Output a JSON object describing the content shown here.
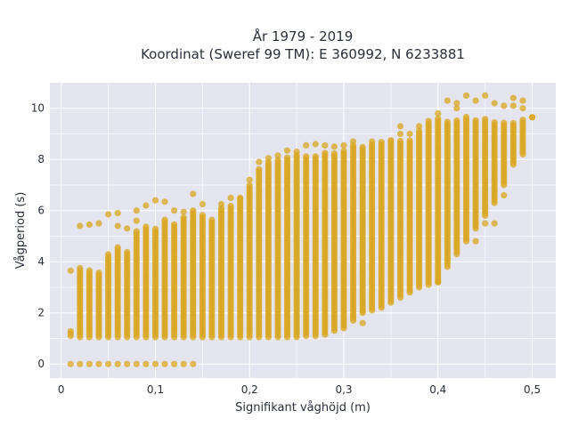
{
  "chart_data": {
    "type": "scatter",
    "title_lines": [
      "År 1979 - 2019",
      "Koordinat (Sweref 99 TM): E 360992, N 6233881"
    ],
    "xlabel": "Signifikant våghöjd (m)",
    "ylabel": "Vågperiod (s)",
    "xlim": [
      -0.012,
      0.525
    ],
    "ylim": [
      -0.55,
      11.0
    ],
    "x_ticks": [
      0,
      0.1,
      0.2,
      0.3,
      0.4,
      0.5
    ],
    "x_tick_labels": [
      "0",
      "0,1",
      "0,2",
      "0,3",
      "0,4",
      "0,5"
    ],
    "y_ticks": [
      0,
      2,
      4,
      6,
      8,
      10
    ],
    "y_tick_labels": [
      "0",
      "2",
      "4",
      "6",
      "8",
      "10"
    ],
    "grid": true,
    "marker_color": "#DAA520",
    "marker_opacity": 0.75,
    "x_step": 0.01,
    "columns": [
      {
        "x": 0.01,
        "y_min": 1.1,
        "y_max": 1.3,
        "extra": [
          0,
          3.65
        ]
      },
      {
        "x": 0.02,
        "y_min": 1.05,
        "y_max": 3.75,
        "extra": [
          0,
          5.4
        ]
      },
      {
        "x": 0.03,
        "y_min": 1.05,
        "y_max": 3.7,
        "extra": [
          0,
          5.45
        ]
      },
      {
        "x": 0.04,
        "y_min": 1.05,
        "y_max": 3.6,
        "extra": [
          0,
          5.5
        ]
      },
      {
        "x": 0.05,
        "y_min": 1.05,
        "y_max": 4.3,
        "extra": [
          0,
          5.85
        ]
      },
      {
        "x": 0.06,
        "y_min": 1.05,
        "y_max": 4.6,
        "extra": [
          0,
          5.9,
          5.4
        ]
      },
      {
        "x": 0.07,
        "y_min": 1.05,
        "y_max": 4.4,
        "extra": [
          0,
          5.3
        ]
      },
      {
        "x": 0.08,
        "y_min": 1.05,
        "y_max": 5.2,
        "extra": [
          0,
          5.6,
          6.0
        ]
      },
      {
        "x": 0.09,
        "y_min": 1.05,
        "y_max": 5.4,
        "extra": [
          0,
          6.2
        ]
      },
      {
        "x": 0.1,
        "y_min": 1.05,
        "y_max": 5.35,
        "extra": [
          0,
          6.4
        ]
      },
      {
        "x": 0.11,
        "y_min": 1.05,
        "y_max": 5.7,
        "extra": [
          0,
          6.35
        ]
      },
      {
        "x": 0.12,
        "y_min": 1.05,
        "y_max": 5.5,
        "extra": [
          0,
          6.0
        ]
      },
      {
        "x": 0.13,
        "y_min": 1.05,
        "y_max": 5.8,
        "extra": [
          0,
          5.95
        ]
      },
      {
        "x": 0.14,
        "y_min": 1.05,
        "y_max": 6.0,
        "extra": [
          0,
          6.65
        ]
      },
      {
        "x": 0.15,
        "y_min": 1.05,
        "y_max": 5.9,
        "extra": [
          6.25
        ]
      },
      {
        "x": 0.16,
        "y_min": 1.05,
        "y_max": 5.7,
        "extra": []
      },
      {
        "x": 0.17,
        "y_min": 1.05,
        "y_max": 6.1,
        "extra": [
          6.25
        ]
      },
      {
        "x": 0.18,
        "y_min": 1.05,
        "y_max": 6.2,
        "extra": [
          6.5
        ]
      },
      {
        "x": 0.19,
        "y_min": 1.05,
        "y_max": 6.5,
        "extra": [
          6.5
        ]
      },
      {
        "x": 0.2,
        "y_min": 1.05,
        "y_max": 7.0,
        "extra": [
          7.2
        ]
      },
      {
        "x": 0.21,
        "y_min": 1.05,
        "y_max": 7.7,
        "extra": [
          7.9
        ]
      },
      {
        "x": 0.22,
        "y_min": 1.05,
        "y_max": 7.9,
        "extra": [
          8.05
        ]
      },
      {
        "x": 0.23,
        "y_min": 1.05,
        "y_max": 8.0,
        "extra": [
          8.15
        ]
      },
      {
        "x": 0.24,
        "y_min": 1.05,
        "y_max": 8.1,
        "extra": [
          8.35
        ]
      },
      {
        "x": 0.25,
        "y_min": 1.05,
        "y_max": 8.2,
        "extra": [
          8.3
        ]
      },
      {
        "x": 0.26,
        "y_min": 1.1,
        "y_max": 8.2,
        "extra": [
          8.55
        ]
      },
      {
        "x": 0.27,
        "y_min": 1.1,
        "y_max": 8.2,
        "extra": [
          8.6
        ]
      },
      {
        "x": 0.28,
        "y_min": 1.15,
        "y_max": 8.3,
        "extra": [
          8.55
        ]
      },
      {
        "x": 0.29,
        "y_min": 1.3,
        "y_max": 8.3,
        "extra": [
          8.5
        ]
      },
      {
        "x": 0.3,
        "y_min": 1.4,
        "y_max": 8.4,
        "extra": [
          8.55
        ]
      },
      {
        "x": 0.31,
        "y_min": 1.7,
        "y_max": 8.6,
        "extra": [
          8.7
        ]
      },
      {
        "x": 0.32,
        "y_min": 2.0,
        "y_max": 8.5,
        "extra": [
          1.6
        ]
      },
      {
        "x": 0.33,
        "y_min": 2.1,
        "y_max": 8.6,
        "extra": [
          8.7
        ]
      },
      {
        "x": 0.34,
        "y_min": 2.2,
        "y_max": 8.7,
        "extra": []
      },
      {
        "x": 0.35,
        "y_min": 2.4,
        "y_max": 8.7,
        "extra": [
          8.75
        ]
      },
      {
        "x": 0.36,
        "y_min": 2.6,
        "y_max": 8.8,
        "extra": [
          9.0,
          9.3
        ]
      },
      {
        "x": 0.37,
        "y_min": 2.8,
        "y_max": 8.8,
        "extra": [
          9.0
        ]
      },
      {
        "x": 0.38,
        "y_min": 3.0,
        "y_max": 9.2,
        "extra": [
          9.3
        ]
      },
      {
        "x": 0.39,
        "y_min": 3.1,
        "y_max": 9.4,
        "extra": [
          9.5
        ]
      },
      {
        "x": 0.4,
        "y_min": 3.2,
        "y_max": 9.6,
        "extra": [
          9.8,
          3.2
        ]
      },
      {
        "x": 0.41,
        "y_min": 3.8,
        "y_max": 9.5,
        "extra": [
          10.3
        ]
      },
      {
        "x": 0.42,
        "y_min": 4.3,
        "y_max": 9.6,
        "extra": [
          10.0,
          10.2
        ]
      },
      {
        "x": 0.43,
        "y_min": 4.8,
        "y_max": 9.7,
        "extra": [
          10.5
        ]
      },
      {
        "x": 0.44,
        "y_min": 5.3,
        "y_max": 9.6,
        "extra": [
          10.3,
          4.8
        ]
      },
      {
        "x": 0.45,
        "y_min": 5.8,
        "y_max": 9.6,
        "extra": [
          10.5,
          5.5
        ]
      },
      {
        "x": 0.46,
        "y_min": 6.3,
        "y_max": 9.5,
        "extra": [
          10.2,
          5.5
        ]
      },
      {
        "x": 0.47,
        "y_min": 7.0,
        "y_max": 9.5,
        "extra": [
          10.1,
          6.6
        ]
      },
      {
        "x": 0.48,
        "y_min": 7.8,
        "y_max": 9.5,
        "extra": [
          10.4,
          10.1
        ]
      },
      {
        "x": 0.49,
        "y_min": 8.2,
        "y_max": 9.6,
        "extra": [
          10.0,
          10.3
        ]
      },
      {
        "x": 0.5,
        "y_min": 9.65,
        "y_max": 9.65,
        "extra": []
      }
    ]
  }
}
